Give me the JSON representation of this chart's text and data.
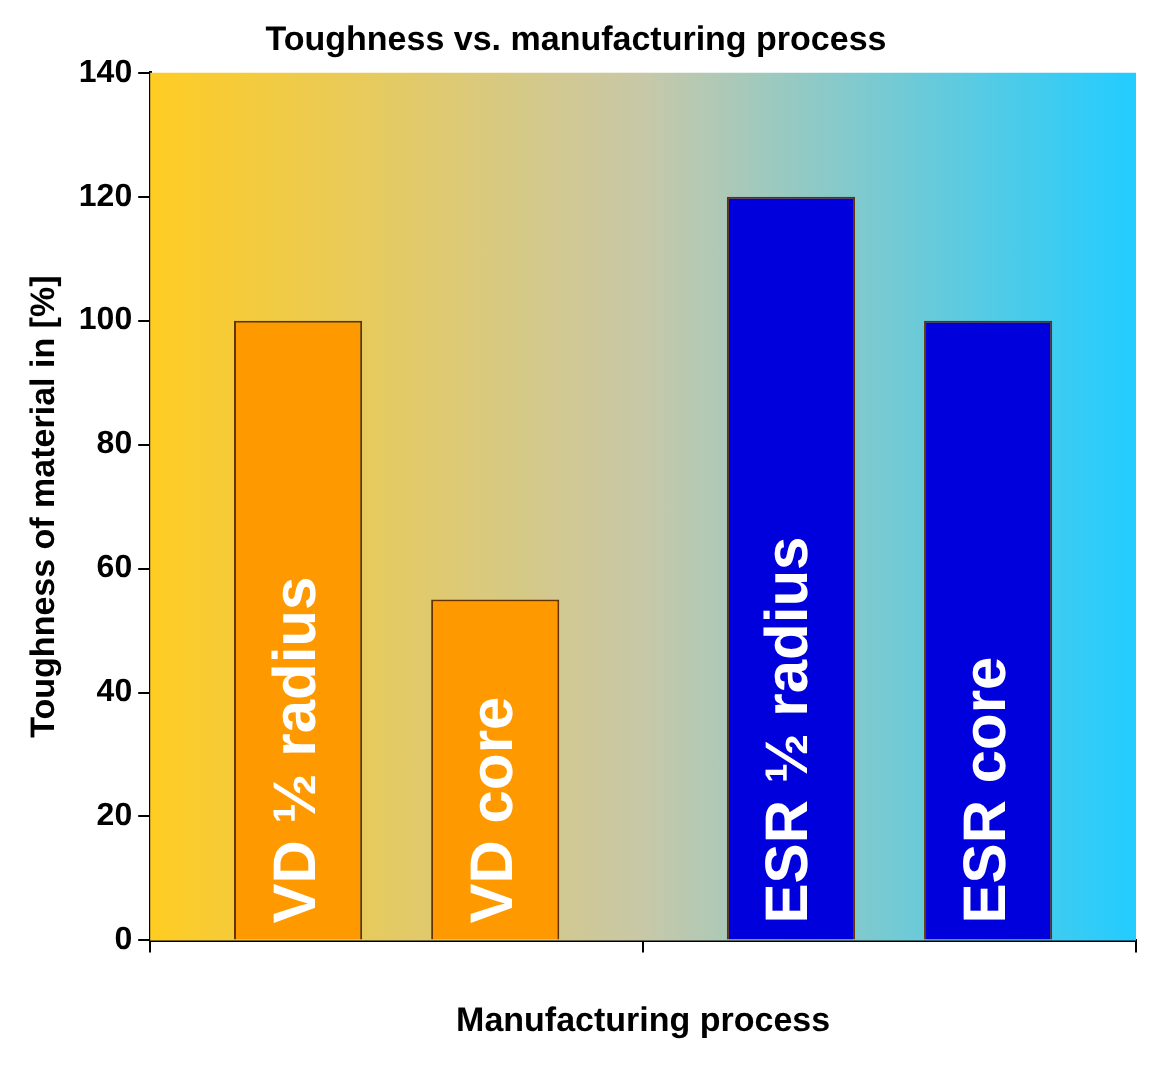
{
  "chart_data": {
    "type": "bar",
    "title": "Toughness vs. manufacturing process",
    "xlabel": "Manufacturing process",
    "ylabel": "Toughness of material in [%]",
    "categories": [
      null,
      null
    ],
    "series": [
      {
        "name": "VD ½ radius",
        "color": "#ff9900",
        "values": [
          100,
          null
        ]
      },
      {
        "name": "VD core",
        "color": "#ff9900",
        "values": [
          55,
          null
        ]
      },
      {
        "name": "ESR ½ radius",
        "color": "#0000dd",
        "values": [
          null,
          120
        ]
      },
      {
        "name": "ESR core",
        "color": "#0000dd",
        "values": [
          null,
          100
        ]
      }
    ],
    "ylim": [
      0,
      140
    ],
    "yticks": [
      0,
      20,
      40,
      60,
      80,
      100,
      120,
      140
    ],
    "grid": false,
    "legend": false
  }
}
